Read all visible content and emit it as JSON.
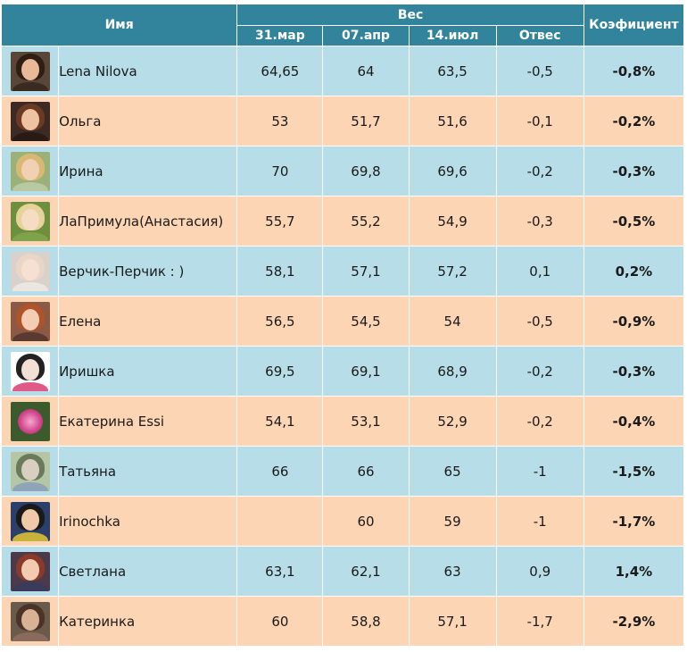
{
  "headers": {
    "name": "Имя",
    "weight_group": "Вес",
    "date1": "31.мар",
    "date2": "07.апр",
    "date3": "14.июл",
    "diff": "Отвес",
    "coef": "Коэфициент"
  },
  "rows": [
    {
      "name": "Lena Nilova",
      "d1": "64,65",
      "d2": "64",
      "d3": "63,5",
      "diff": "-0,5",
      "coef": "-0,8%",
      "avatar": {
        "bg": "#5a4636",
        "hair": "#2e1e14",
        "skin": "#e8b899",
        "shirt": "#3a2a22"
      }
    },
    {
      "name": "Ольга",
      "d1": "53",
      "d2": "51,7",
      "d3": "51,6",
      "diff": "-0,1",
      "coef": "-0,2%",
      "avatar": {
        "bg": "#3d2a24",
        "hair": "#6b3a22",
        "skin": "#efc3a2",
        "shirt": "#2a1a16"
      }
    },
    {
      "name": "Ирина",
      "d1": "70",
      "d2": "69,8",
      "d3": "69,6",
      "diff": "-0,2",
      "coef": "-0,3%",
      "avatar": {
        "bg": "#9ab27a",
        "hair": "#d8b872",
        "skin": "#f2d0b4",
        "shirt": "#b8c8a0"
      }
    },
    {
      "name": "ЛаПримула(Анастасия)",
      "d1": "55,7",
      "d2": "55,2",
      "d3": "54,9",
      "diff": "-0,3",
      "coef": "-0,5%",
      "avatar": {
        "bg": "#6d8f3e",
        "hair": "#e6d39a",
        "skin": "#f5dcc2",
        "shirt": "#7fa24a"
      }
    },
    {
      "name": "Верчик-Перчик : )",
      "d1": "58,1",
      "d2": "57,1",
      "d3": "57,2",
      "diff": "0,1",
      "coef": "0,2%",
      "avatar": {
        "bg": "#d9d2cc",
        "hair": "#e9d6c6",
        "skin": "#f6e0d2",
        "shirt": "#ece6e0"
      }
    },
    {
      "name": "Елена",
      "d1": "56,5",
      "d2": "54,5",
      "d3": "54",
      "diff": "-0,5",
      "coef": "-0,9%",
      "avatar": {
        "bg": "#8c5a44",
        "hair": "#b0522a",
        "skin": "#f3cdb4",
        "shirt": "#5a3a30"
      }
    },
    {
      "name": "Иришка",
      "d1": "69,5",
      "d2": "69,1",
      "d3": "68,9",
      "diff": "-0,2",
      "coef": "-0,3%",
      "avatar": {
        "bg": "#ffffff",
        "hair": "#222222",
        "skin": "#f2e0d6",
        "shirt": "#e05a88"
      }
    },
    {
      "name": "Екатерина Essi",
      "d1": "54,1",
      "d2": "53,1",
      "d3": "52,9",
      "diff": "-0,2",
      "coef": "-0,4%",
      "avatar": {
        "bg": "#3c5a2c",
        "flower": true
      }
    },
    {
      "name": "Татьяна",
      "d1": "66",
      "d2": "66",
      "d3": "65",
      "diff": "-1",
      "coef": "-1,5%",
      "avatar": {
        "bg": "#b4c6a6",
        "hair": "#6a7a5a",
        "skin": "#d8cfc0",
        "shirt": "#8fa4b8"
      }
    },
    {
      "name": "Irinochka",
      "d1": "",
      "d2": "60",
      "d3": "59",
      "diff": "-1",
      "coef": "-1,7%",
      "avatar": {
        "bg": "#2c3e6a",
        "hair": "#1a1a1a",
        "skin": "#f0c9a8",
        "shirt": "#c8b23a"
      }
    },
    {
      "name": "Светлана",
      "d1": "63,1",
      "d2": "62,1",
      "d3": "63",
      "diff": "0,9",
      "coef": "1,4%",
      "avatar": {
        "bg": "#4a3a4a",
        "hair": "#8a3a2a",
        "skin": "#f2cbb0",
        "shirt": "#3a3a5a"
      }
    },
    {
      "name": "Катеринка",
      "d1": "60",
      "d2": "58,8",
      "d3": "57,1",
      "diff": "-1,7",
      "coef": "-2,9%",
      "avatar": {
        "bg": "#6a5a4a",
        "hair": "#4a3428",
        "skin": "#d9b296",
        "shirt": "#8a6a5a"
      }
    }
  ],
  "colors": {
    "header": "#31849b",
    "row_blue": "#b7dee8",
    "row_peach": "#fcd5b4"
  }
}
